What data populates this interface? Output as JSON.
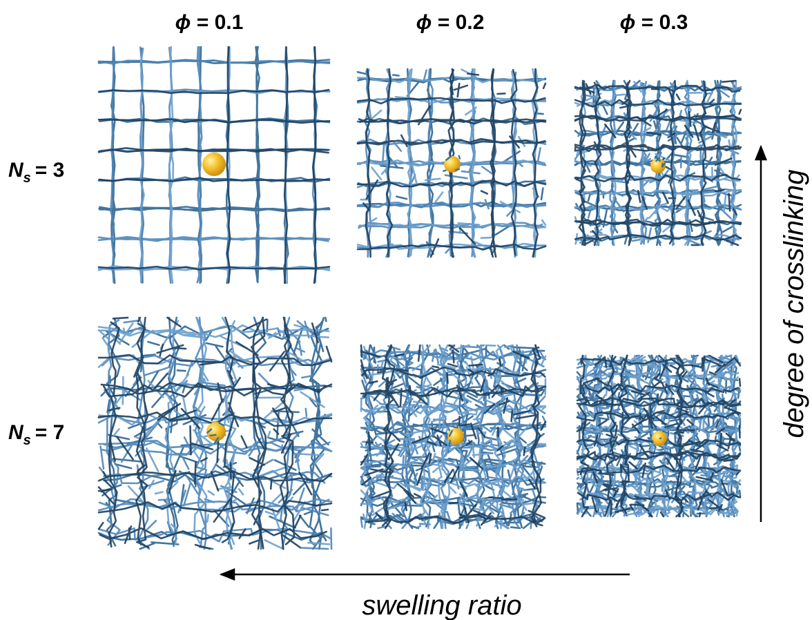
{
  "columns": [
    {
      "symbol": "ϕ",
      "text": "= 0.1"
    },
    {
      "symbol": "ϕ",
      "text": "= 0.2"
    },
    {
      "symbol": "ϕ",
      "text": "= 0.3"
    }
  ],
  "rows": [
    {
      "symbol": "N",
      "subscript": "s",
      "text": "= 3"
    },
    {
      "symbol": "N",
      "subscript": "s",
      "text": "= 7"
    }
  ],
  "x_arrow_label": "swelling ratio",
  "y_arrow_label": "degree of crosslinking"
}
